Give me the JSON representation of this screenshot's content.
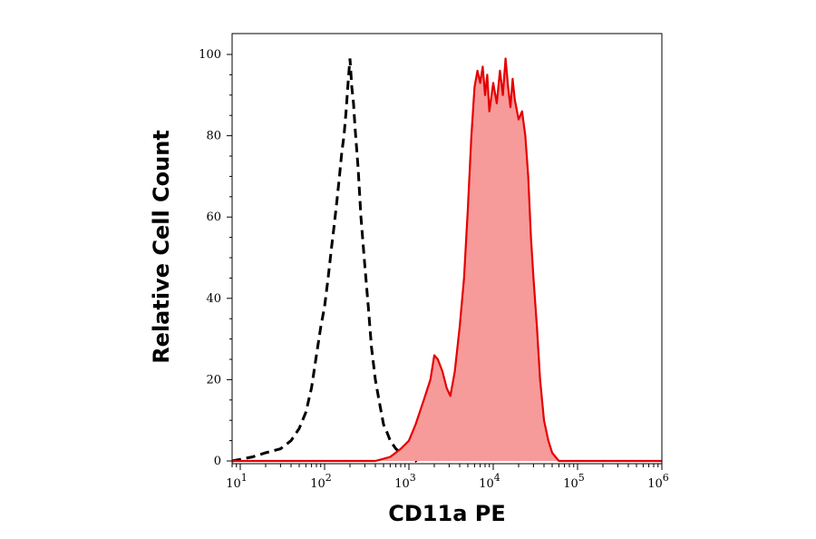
{
  "chart_data": {
    "type": "area",
    "xlabel": "CD11a PE",
    "ylabel": "Relative Cell Count",
    "x_scale": "log",
    "xlim": [
      8,
      1000000
    ],
    "ylim": [
      0,
      100
    ],
    "x_ticks": [
      {
        "value": 10,
        "base": "10",
        "exp": "1"
      },
      {
        "value": 100,
        "base": "10",
        "exp": "2"
      },
      {
        "value": 1000,
        "base": "10",
        "exp": "3"
      },
      {
        "value": 10000,
        "base": "10",
        "exp": "4"
      },
      {
        "value": 100000,
        "base": "10",
        "exp": "5"
      },
      {
        "value": 1000000,
        "base": "10",
        "exp": "6"
      }
    ],
    "y_ticks": [
      "0",
      "20",
      "40",
      "60",
      "80",
      "100"
    ],
    "grid": false,
    "legend": "none",
    "series": [
      {
        "style": "dashed",
        "color": "#000000",
        "x": [
          8,
          14,
          20,
          30,
          40,
          50,
          60,
          70,
          80,
          90,
          100,
          110,
          120,
          130,
          140,
          150,
          160,
          170,
          180,
          190,
          200,
          210,
          220,
          230,
          250,
          270,
          300,
          330,
          360,
          400,
          450,
          500,
          550,
          600,
          700,
          800,
          900,
          1000,
          1200,
          1500,
          2000
        ],
        "y": [
          0,
          1,
          2,
          3,
          5,
          8,
          12,
          18,
          26,
          33,
          38,
          45,
          52,
          58,
          64,
          70,
          76,
          80,
          86,
          93,
          99,
          92,
          88,
          82,
          72,
          60,
          48,
          38,
          28,
          20,
          14,
          9,
          7,
          5,
          3,
          2,
          1,
          1,
          0,
          2,
          0
        ]
      },
      {
        "style": "filled",
        "color": "#e50000",
        "fill": "#f79a9a",
        "x": [
          8,
          400,
          600,
          800,
          1000,
          1200,
          1500,
          1800,
          2000,
          2200,
          2500,
          2800,
          3100,
          3500,
          4000,
          4500,
          5000,
          5500,
          6000,
          6500,
          7000,
          7500,
          8000,
          8500,
          9000,
          10000,
          11000,
          12000,
          13000,
          14000,
          15000,
          16000,
          17000,
          18000,
          20000,
          22000,
          24000,
          26000,
          28000,
          30000,
          33000,
          36000,
          40000,
          45000,
          50000,
          60000,
          100000,
          1000000
        ],
        "y": [
          0,
          0,
          1,
          3,
          5,
          9,
          15,
          20,
          26,
          25,
          22,
          18,
          16,
          22,
          33,
          45,
          62,
          80,
          92,
          96,
          93,
          97,
          90,
          95,
          86,
          93,
          88,
          96,
          90,
          99,
          92,
          87,
          94,
          89,
          84,
          86,
          80,
          70,
          55,
          45,
          33,
          20,
          10,
          5,
          2,
          0,
          0,
          0
        ]
      }
    ]
  }
}
